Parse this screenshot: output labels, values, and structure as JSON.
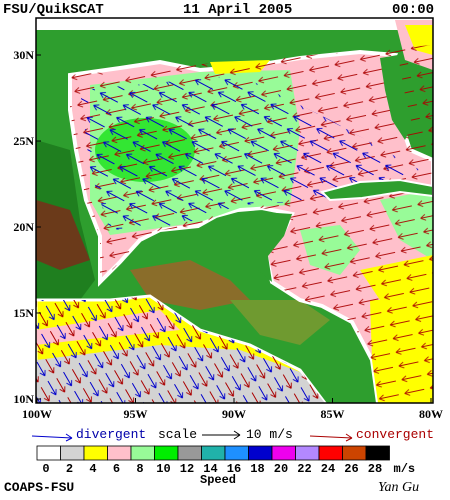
{
  "header": {
    "title": "FSU/QuikSCAT",
    "date": "11 April 2005",
    "time": "00:00"
  },
  "map": {
    "lat_labels": [
      "30N",
      "25N",
      "20N",
      "15N",
      "10N"
    ],
    "lon_labels": [
      "100W",
      "95W",
      "90W",
      "85W",
      "80W"
    ]
  },
  "legend": {
    "divergent": "divergent",
    "scale": "scale",
    "scale_value": "10 m/s",
    "convergent": "convergent"
  },
  "colorbar": {
    "labels": [
      "0",
      "2",
      "4",
      "6",
      "8",
      "10",
      "12",
      "14",
      "16",
      "18",
      "20",
      "22",
      "24",
      "26",
      "28"
    ],
    "colors": [
      "#ffffff",
      "#d3d3d3",
      "#ffff00",
      "#ffc0cb",
      "#98fb98",
      "#00ee00",
      "#999999",
      "#20b2aa",
      "#1e90ff",
      "#0000cd",
      "#ee00ee",
      "#b388ff",
      "#ff0000",
      "#cc4400",
      "#000000"
    ],
    "unit": "m/s",
    "title": "Speed"
  },
  "footer": {
    "source": "COAPS-FSU",
    "author": "Yan Gu"
  }
}
